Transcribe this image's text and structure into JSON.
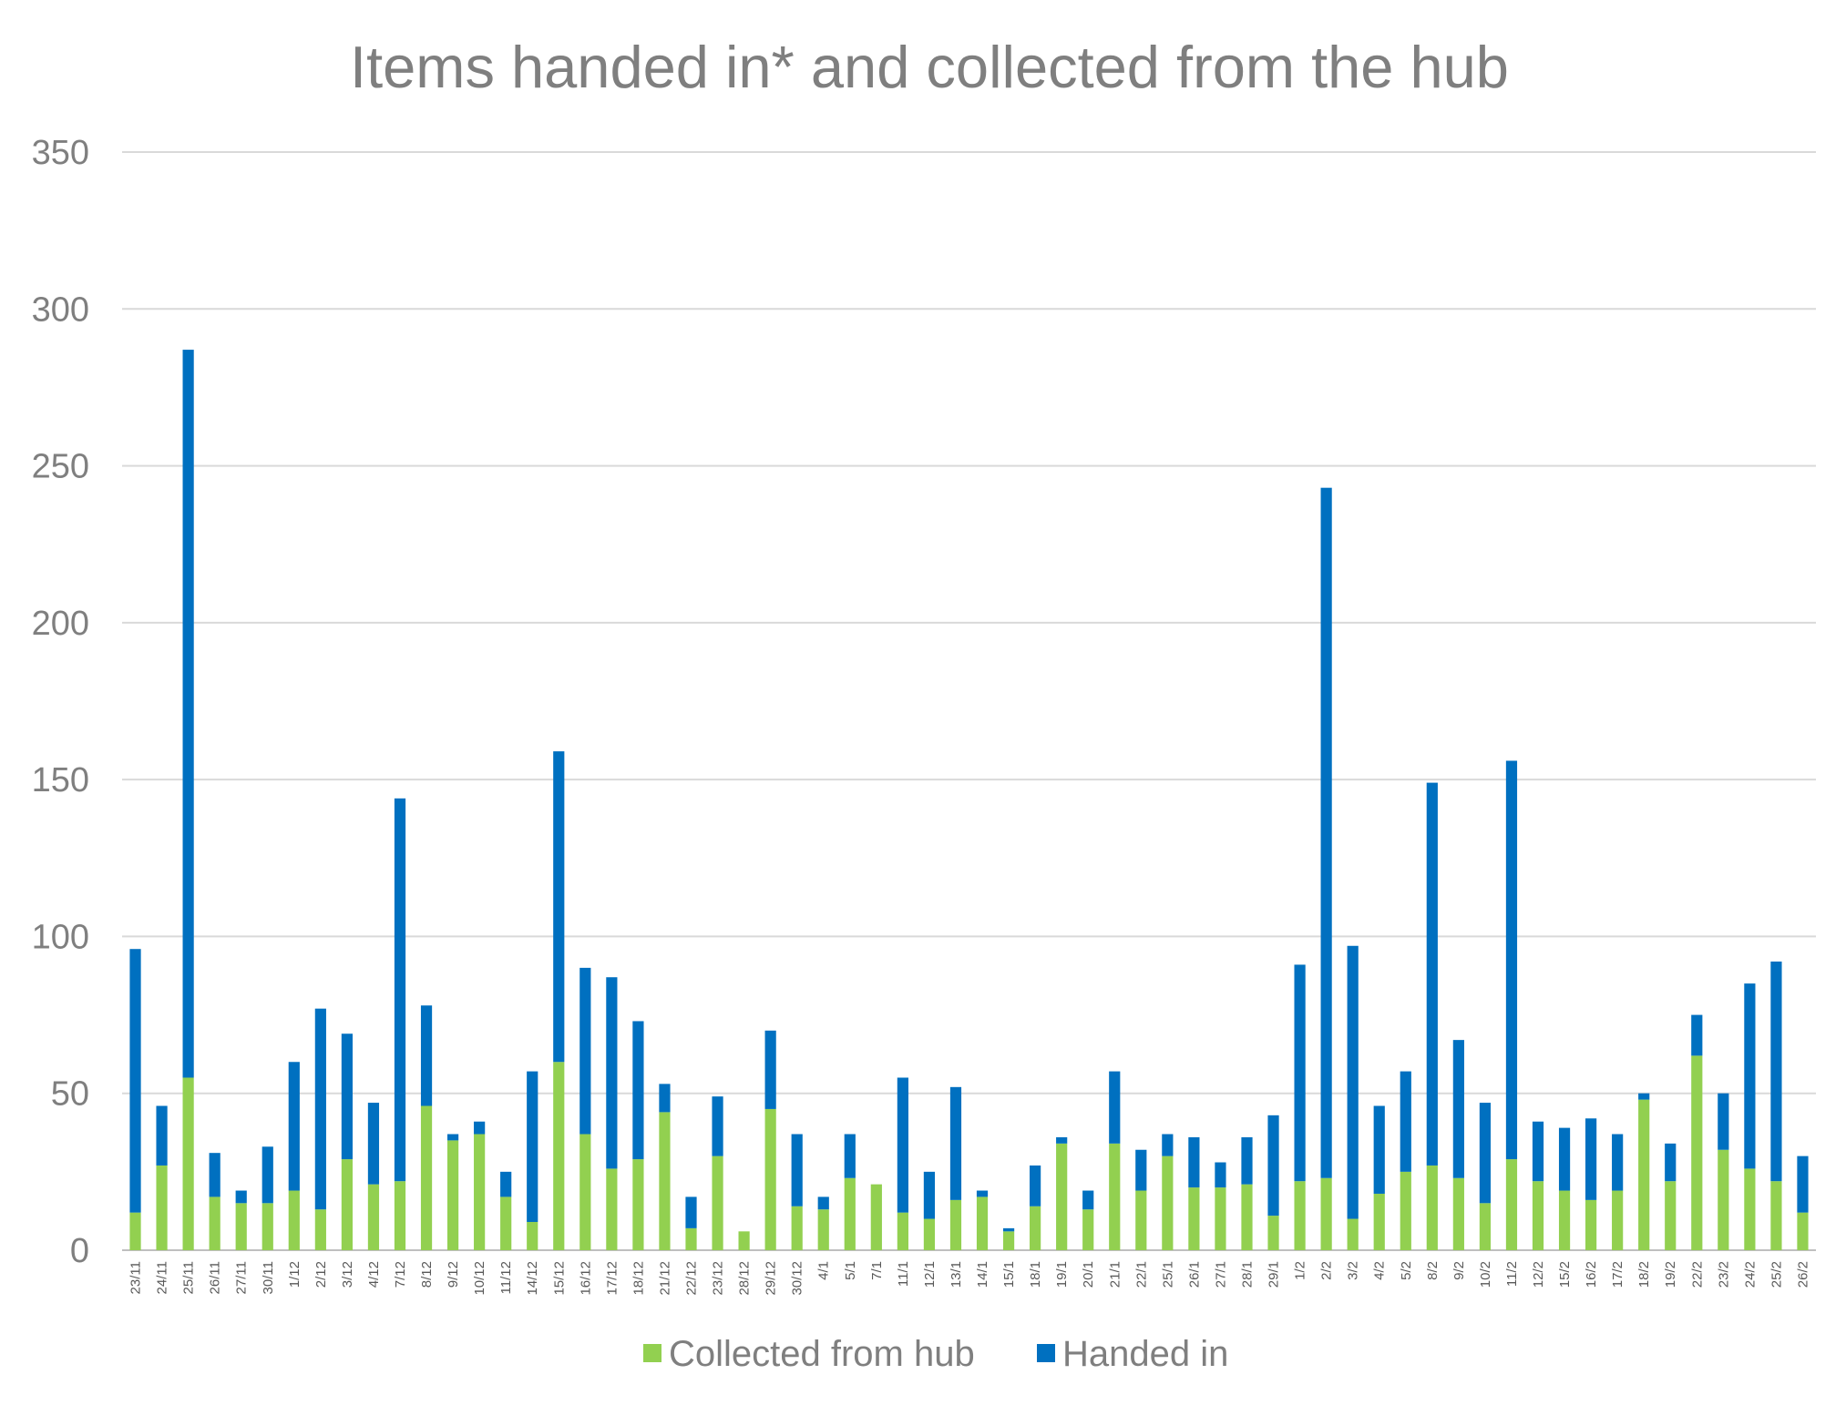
{
  "chart_data": {
    "type": "bar",
    "stacked": true,
    "title": "Items handed in* and collected from the hub",
    "xlabel": "",
    "ylabel": "",
    "ylim": [
      0,
      350
    ],
    "yticks": [
      0,
      50,
      100,
      150,
      200,
      250,
      300,
      350
    ],
    "grid": true,
    "legend_position": "bottom",
    "categories": [
      "23/11",
      "24/11",
      "25/11",
      "26/11",
      "27/11",
      "30/11",
      "1/12",
      "2/12",
      "3/12",
      "4/12",
      "7/12",
      "8/12",
      "9/12",
      "10/12",
      "11/12",
      "14/12",
      "15/12",
      "16/12",
      "17/12",
      "18/12",
      "21/12",
      "22/12",
      "23/12",
      "28/12",
      "29/12",
      "30/12",
      "4/1",
      "5/1",
      "7/1",
      "11/1",
      "12/1",
      "13/1",
      "14/1",
      "15/1",
      "18/1",
      "19/1",
      "20/1",
      "21/1",
      "22/1",
      "25/1",
      "26/1",
      "27/1",
      "28/1",
      "29/1",
      "1/2",
      "2/2",
      "3/2",
      "4/2",
      "5/2",
      "8/2",
      "9/2",
      "10/2",
      "11/2",
      "12/2",
      "15/2",
      "16/2",
      "17/2",
      "18/2",
      "19/2",
      "22/2",
      "23/2",
      "24/2",
      "25/2",
      "26/2"
    ],
    "series": [
      {
        "name": "Collected from hub",
        "color": "#92d050",
        "values": [
          12,
          27,
          55,
          17,
          15,
          15,
          19,
          13,
          29,
          21,
          22,
          46,
          35,
          37,
          17,
          9,
          60,
          37,
          26,
          29,
          44,
          7,
          30,
          6,
          45,
          14,
          13,
          23,
          21,
          12,
          10,
          16,
          17,
          6,
          14,
          34,
          13,
          34,
          19,
          30,
          20,
          20,
          21,
          11,
          22,
          23,
          10,
          18,
          25,
          27,
          23,
          15,
          29,
          22,
          19,
          16,
          19,
          48,
          22,
          62,
          32,
          26,
          22,
          12
        ]
      },
      {
        "name": "Handed in",
        "color": "#0070c0",
        "values": [
          84,
          19,
          232,
          14,
          4,
          18,
          41,
          64,
          40,
          26,
          122,
          32,
          2,
          4,
          8,
          48,
          99,
          53,
          61,
          44,
          9,
          10,
          19,
          0,
          25,
          23,
          4,
          14,
          0,
          43,
          15,
          36,
          2,
          1,
          13,
          2,
          6,
          23,
          13,
          7,
          16,
          8,
          15,
          32,
          69,
          220,
          87,
          28,
          32,
          122,
          44,
          32,
          127,
          19,
          20,
          26,
          18,
          2,
          12,
          13,
          18,
          59,
          70,
          18
        ]
      }
    ]
  }
}
